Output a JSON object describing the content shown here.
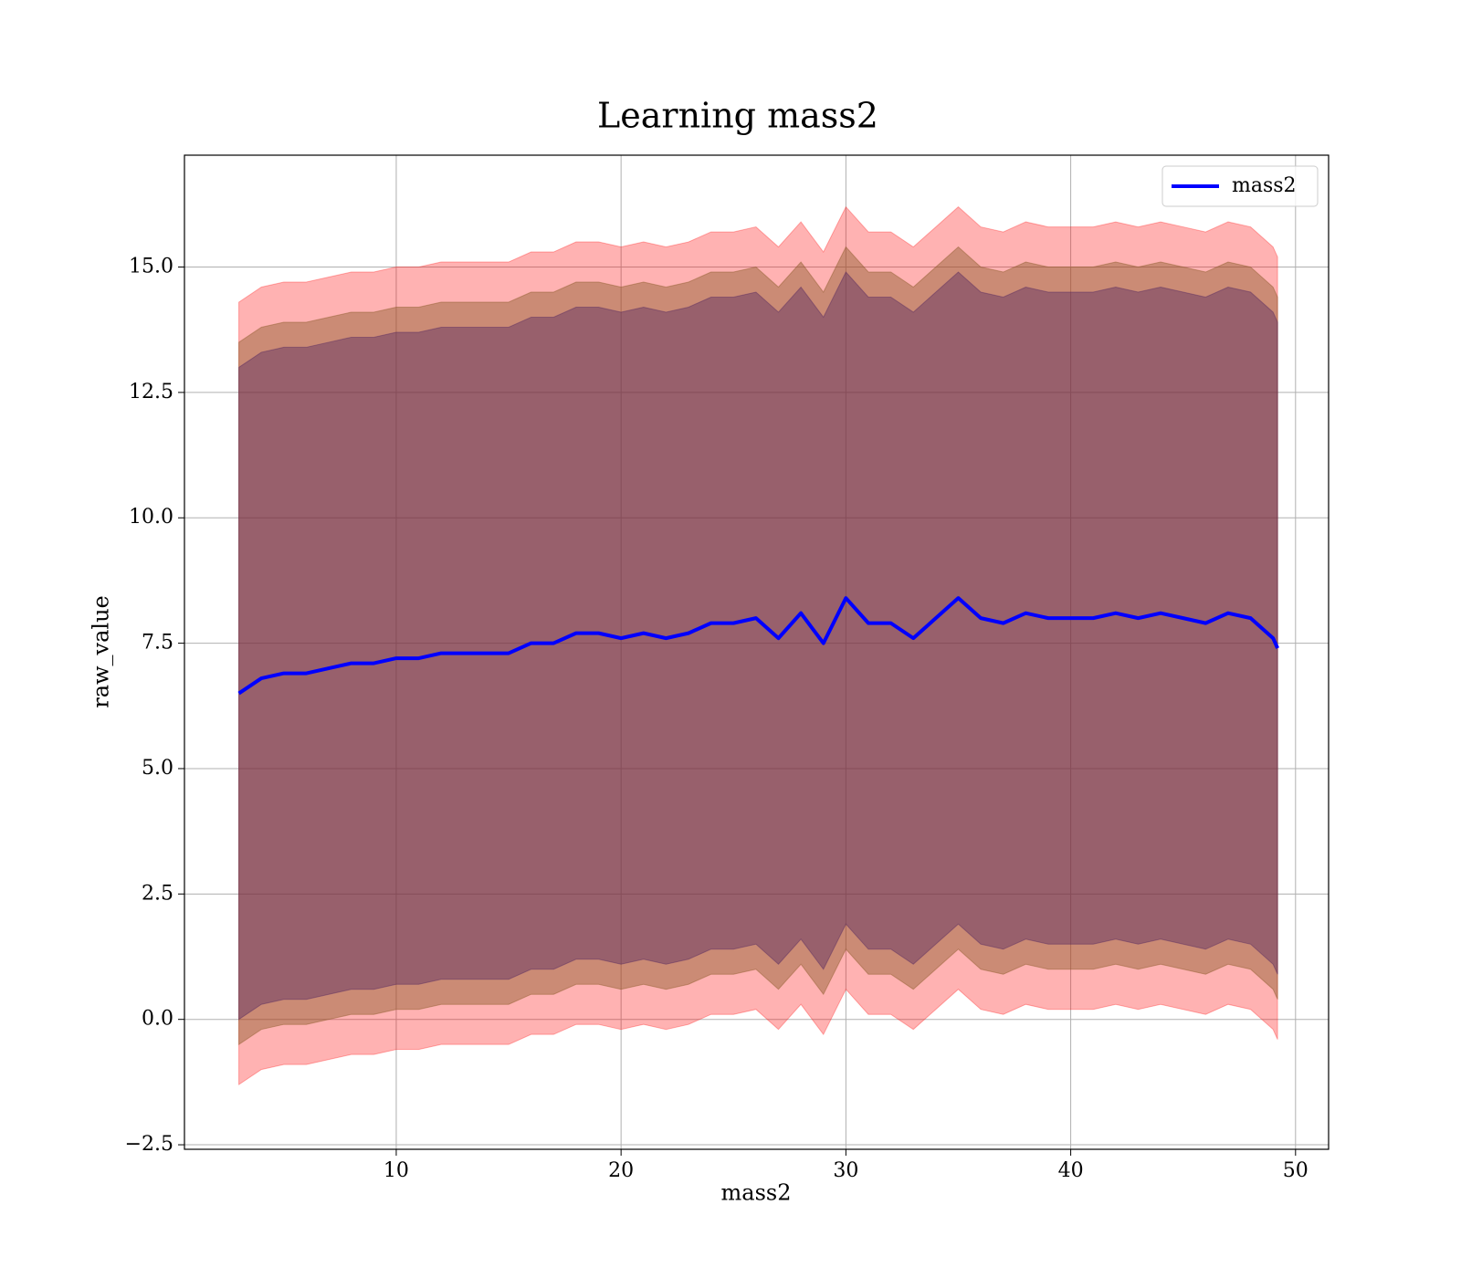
{
  "chart_data": {
    "type": "line",
    "title": "Learning mass2",
    "xlabel": "mass2",
    "ylabel": "raw_value",
    "xlim": [
      0.58,
      51.47
    ],
    "ylim": [
      -2.59,
      17.23
    ],
    "xticks": [
      10,
      20,
      30,
      40,
      50
    ],
    "yticks": [
      {
        "value": -2.5,
        "label": "−2.5"
      },
      {
        "value": 0,
        "label": "0.0"
      },
      2.5,
      {
        "value": 5,
        "label": "5.0"
      },
      7.5,
      {
        "value": 10,
        "label": "10.0"
      },
      12.5,
      {
        "value": 15,
        "label": "15.0"
      }
    ],
    "grid": true,
    "legend": "upper right",
    "x": [
      3,
      4,
      5,
      6,
      7,
      8,
      9,
      10,
      11,
      12,
      13,
      14,
      15,
      16,
      17,
      18,
      19,
      20,
      21,
      22,
      23,
      24,
      25,
      26,
      27,
      28,
      29,
      30,
      31,
      32,
      33,
      34,
      35,
      36,
      37,
      38,
      39,
      40,
      41,
      42,
      43,
      44,
      45,
      46,
      47,
      48,
      49,
      49.2
    ],
    "series": [
      {
        "name": "mass2",
        "color": "#0000ff",
        "values": [
          6.5,
          6.8,
          6.9,
          6.9,
          7.0,
          7.1,
          7.1,
          7.2,
          7.2,
          7.3,
          7.3,
          7.3,
          7.3,
          7.5,
          7.5,
          7.7,
          7.7,
          7.6,
          7.7,
          7.6,
          7.7,
          7.9,
          7.9,
          8.0,
          7.6,
          8.1,
          7.5,
          8.4,
          7.9,
          7.9,
          7.6,
          8.0,
          8.4,
          8.0,
          7.9,
          8.1,
          8.0,
          8.0,
          8.0,
          8.1,
          8.0,
          8.1,
          8.0,
          7.9,
          8.1,
          8.0,
          7.6,
          7.4
        ]
      }
    ],
    "bands": [
      {
        "color": "#ff0000",
        "opacity": 0.3,
        "upper": [
          14.3,
          14.6,
          14.7,
          14.7,
          14.8,
          14.9,
          14.9,
          15.0,
          15.0,
          15.1,
          15.1,
          15.1,
          15.1,
          15.3,
          15.3,
          15.5,
          15.5,
          15.4,
          15.5,
          15.4,
          15.5,
          15.7,
          15.7,
          15.8,
          15.4,
          15.9,
          15.3,
          16.2,
          15.7,
          15.7,
          15.4,
          15.8,
          16.2,
          15.8,
          15.7,
          15.9,
          15.8,
          15.8,
          15.8,
          15.9,
          15.8,
          15.9,
          15.8,
          15.7,
          15.9,
          15.8,
          15.4,
          15.2
        ],
        "lower": [
          -1.3,
          -1.0,
          -0.9,
          -0.9,
          -0.8,
          -0.7,
          -0.7,
          -0.6,
          -0.6,
          -0.5,
          -0.5,
          -0.5,
          -0.5,
          -0.3,
          -0.3,
          -0.1,
          -0.1,
          -0.2,
          -0.1,
          -0.2,
          -0.1,
          0.1,
          0.1,
          0.2,
          -0.2,
          0.3,
          -0.3,
          0.6,
          0.1,
          0.1,
          -0.2,
          0.2,
          0.6,
          0.2,
          0.1,
          0.3,
          0.2,
          0.2,
          0.2,
          0.3,
          0.2,
          0.3,
          0.2,
          0.1,
          0.3,
          0.2,
          -0.2,
          -0.4
        ]
      },
      {
        "color": "#8b5a2b",
        "opacity": 0.45,
        "upper": [
          13.5,
          13.8,
          13.9,
          13.9,
          14.0,
          14.1,
          14.1,
          14.2,
          14.2,
          14.3,
          14.3,
          14.3,
          14.3,
          14.5,
          14.5,
          14.7,
          14.7,
          14.6,
          14.7,
          14.6,
          14.7,
          14.9,
          14.9,
          15.0,
          14.6,
          15.1,
          14.5,
          15.4,
          14.9,
          14.9,
          14.6,
          15.0,
          15.4,
          15.0,
          14.9,
          15.1,
          15.0,
          15.0,
          15.0,
          15.1,
          15.0,
          15.1,
          15.0,
          14.9,
          15.1,
          15.0,
          14.6,
          14.4
        ],
        "lower": [
          -0.5,
          -0.2,
          -0.1,
          -0.1,
          0.0,
          0.1,
          0.1,
          0.2,
          0.2,
          0.3,
          0.3,
          0.3,
          0.3,
          0.5,
          0.5,
          0.7,
          0.7,
          0.6,
          0.7,
          0.6,
          0.7,
          0.9,
          0.9,
          1.0,
          0.6,
          1.1,
          0.5,
          1.4,
          0.9,
          0.9,
          0.6,
          1.0,
          1.4,
          1.0,
          0.9,
          1.1,
          1.0,
          1.0,
          1.0,
          1.1,
          1.0,
          1.1,
          1.0,
          0.9,
          1.1,
          1.0,
          0.6,
          0.4
        ]
      },
      {
        "color": "#4b2060",
        "opacity": 0.4,
        "upper": [
          13.0,
          13.3,
          13.4,
          13.4,
          13.5,
          13.6,
          13.6,
          13.7,
          13.7,
          13.8,
          13.8,
          13.8,
          13.8,
          14.0,
          14.0,
          14.2,
          14.2,
          14.1,
          14.2,
          14.1,
          14.2,
          14.4,
          14.4,
          14.5,
          14.1,
          14.6,
          14.0,
          14.9,
          14.4,
          14.4,
          14.1,
          14.5,
          14.9,
          14.5,
          14.4,
          14.6,
          14.5,
          14.5,
          14.5,
          14.6,
          14.5,
          14.6,
          14.5,
          14.4,
          14.6,
          14.5,
          14.1,
          13.9
        ],
        "lower": [
          0.0,
          0.3,
          0.4,
          0.4,
          0.5,
          0.6,
          0.6,
          0.7,
          0.7,
          0.8,
          0.8,
          0.8,
          0.8,
          1.0,
          1.0,
          1.2,
          1.2,
          1.1,
          1.2,
          1.1,
          1.2,
          1.4,
          1.4,
          1.5,
          1.1,
          1.6,
          1.0,
          1.9,
          1.4,
          1.4,
          1.1,
          1.5,
          1.9,
          1.5,
          1.4,
          1.6,
          1.5,
          1.5,
          1.5,
          1.6,
          1.5,
          1.6,
          1.5,
          1.4,
          1.6,
          1.5,
          1.1,
          0.9
        ]
      }
    ]
  }
}
